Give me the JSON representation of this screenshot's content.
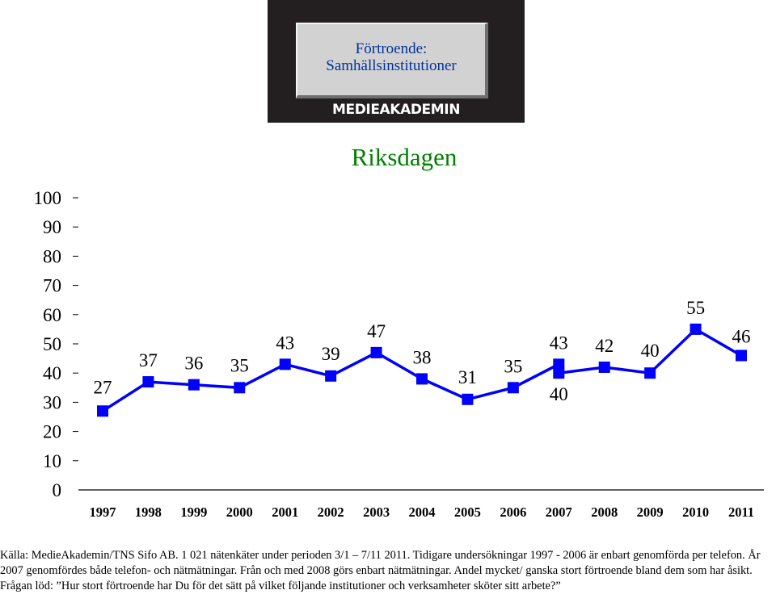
{
  "logo": {
    "title": "Förtroende: Samhällsinstitutioner",
    "brand": "MEDIEAKADEMIN"
  },
  "chart_data": {
    "type": "line",
    "title": "Riksdagen",
    "xlabel": "",
    "ylabel": "",
    "ylim": [
      0,
      100
    ],
    "yticks": [
      0,
      10,
      20,
      30,
      40,
      50,
      60,
      70,
      80,
      90,
      100
    ],
    "categories": [
      "1997",
      "1998",
      "1999",
      "2000",
      "2001",
      "2002",
      "2003",
      "2004",
      "2005",
      "2006",
      "2007",
      "2008",
      "2009",
      "2010",
      "2011"
    ],
    "series": [
      {
        "color": "#0000ff",
        "points": [
          {
            "x": "1997",
            "y": 27
          },
          {
            "x": "1998",
            "y": 37
          },
          {
            "x": "1999",
            "y": 36
          },
          {
            "x": "2000",
            "y": 35
          },
          {
            "x": "2001",
            "y": 43
          },
          {
            "x": "2002",
            "y": 39
          },
          {
            "x": "2003",
            "y": 47
          },
          {
            "x": "2004",
            "y": 38
          },
          {
            "x": "2005",
            "y": 31
          },
          {
            "x": "2006",
            "y": 35
          },
          {
            "x": "2007",
            "y": 43
          },
          {
            "x": "2007",
            "y": 40
          },
          {
            "x": "2008",
            "y": 42
          },
          {
            "x": "2009",
            "y": 40
          },
          {
            "x": "2010",
            "y": 55
          },
          {
            "x": "2011",
            "y": 46
          }
        ]
      }
    ],
    "grid": false,
    "legend": "none",
    "colors": {
      "title": "#008000",
      "line": "#0000ff",
      "axis": "#000000",
      "logo_bg": "#231f20"
    }
  },
  "source": {
    "text": "Källa: MedieAkademin/TNS Sifo AB. 1 021 nätenkäter under perioden 3/1 – 7/11 2011. Tidigare undersökningar 1997 - 2006 är enbart genomförda per telefon. År 2007 genomfördes både telefon- och nätmätningar. Från och med 2008 görs enbart nätmätningar. Andel mycket/ ganska stort förtroende bland dem som har åsikt. Frågan löd: ”Hur stort förtroende har Du för det sätt på vilket följande institutioner och verksamheter sköter sitt arbete?”"
  }
}
